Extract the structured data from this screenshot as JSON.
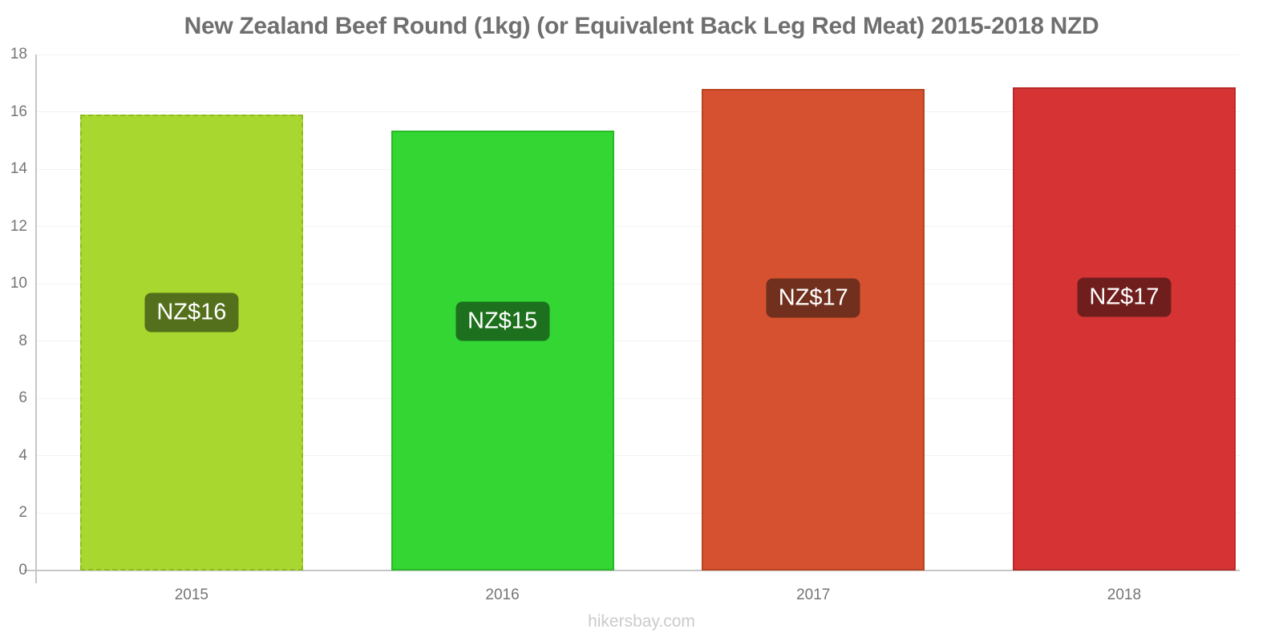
{
  "title": "New Zealand Beef Round (1kg) (or Equivalent Back Leg Red Meat) 2015-2018 NZD",
  "watermark": "hikersbay.com",
  "chart_data": {
    "type": "bar",
    "title": "New Zealand Beef Round (1kg) (or Equivalent Back Leg Red Meat) 2015-2018 NZD",
    "currency": "NZD",
    "categories": [
      "2015",
      "2016",
      "2017",
      "2018"
    ],
    "values": [
      15.9,
      15.35,
      16.8,
      16.85
    ],
    "bar_labels": [
      "NZ$16",
      "NZ$15",
      "NZ$17",
      "NZ$17"
    ],
    "bar_colors": [
      "#a8d82f",
      "#33d633",
      "#d65130",
      "#d63434"
    ],
    "bar_border_colors": [
      "#8fba25",
      "#28b828",
      "#b8431f",
      "#b82a2a"
    ],
    "bar_border_styles": [
      "dashed",
      "solid",
      "solid",
      "solid"
    ],
    "label_bg_colors": [
      "#55701d",
      "#1d701d",
      "#70301d",
      "#701d1d"
    ],
    "xlabel": "",
    "ylabel": "",
    "ylim": [
      0,
      18
    ],
    "yticks": [
      0,
      2,
      4,
      6,
      8,
      10,
      12,
      14,
      16,
      18
    ],
    "grid": "horizontal",
    "legend": "none",
    "axis_color": "#c6c6c6",
    "grid_color": "#f2f2f2",
    "text_color": "#757575",
    "title_color": "#6f6f6f",
    "watermark_color": "#cbcbcb"
  }
}
